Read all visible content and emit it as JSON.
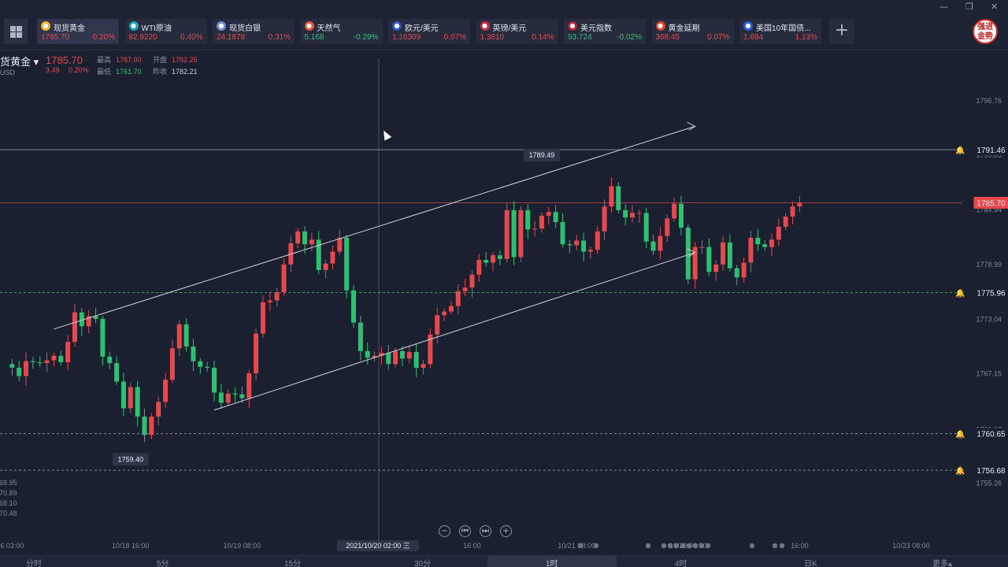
{
  "window": {
    "minimize": "—",
    "restore": "❐",
    "close": "✕"
  },
  "quotes": [
    {
      "name": "现货黄金",
      "price": "1785.70",
      "change": "0.20%",
      "dir": "up",
      "icon_color": "#e9b437",
      "icon": "gold-icon"
    },
    {
      "name": "WTI原油",
      "price": "82.9220",
      "change": "0.40%",
      "dir": "up",
      "icon_color": "#17a3b8",
      "icon": "oil-icon"
    },
    {
      "name": "现货白银",
      "price": "24.1878",
      "change": "0.31%",
      "dir": "up",
      "icon_color": "#6c8fd8",
      "icon": "silver-icon"
    },
    {
      "name": "天然气",
      "price": "5.168",
      "change": "-0.29%",
      "dir": "down",
      "icon_color": "#e6553a",
      "icon": "flame-icon"
    },
    {
      "name": "欧元/美元",
      "price": "1.16309",
      "change": "0.07%",
      "dir": "up",
      "icon_color": "#3357c9",
      "icon": "flag-eu-us-icon"
    },
    {
      "name": "英镑/美元",
      "price": "1.3810",
      "change": "0.14%",
      "dir": "up",
      "icon_color": "#c92a3e",
      "icon": "flag-uk-us-icon"
    },
    {
      "name": "美元指数",
      "price": "93.724",
      "change": "-0.02%",
      "dir": "down",
      "icon_color": "#b22234",
      "icon": "flag-us-icon"
    },
    {
      "name": "黄金延期",
      "price": "368.45",
      "change": "0.07%",
      "dir": "up",
      "icon_color": "#d9472b",
      "icon": "gold-bar-icon"
    },
    {
      "name": "美国10年国债...",
      "price": "1.694",
      "change": "1.13%",
      "dir": "up",
      "icon_color": "#2a5bd7",
      "icon": "bar-chart-icon"
    }
  ],
  "brand": {
    "line1": "强进",
    "line2": "金势"
  },
  "instrument": {
    "name": "货黄金",
    "unit": "USD",
    "price": "1785.70",
    "change": "3.49",
    "change_pct": "0.20%",
    "high_label": "最高",
    "high": "1787.00",
    "open_label": "开盘",
    "open": "1782.25",
    "low_label": "最低",
    "low": "1761.70",
    "prev_label": "昨收",
    "prev": "1782.21"
  },
  "chart_data": {
    "type": "candlestick",
    "timeframe": "1时",
    "ylim": [
      1752.5,
      1799.5
    ],
    "y_ticks": [
      "1796.76",
      "1790.85",
      "1784.94",
      "1778.99",
      "1773.04",
      "1767.15",
      "1761.07",
      "1755.26"
    ],
    "left_labels": [
      "69.95",
      "70.89",
      "68.10",
      "70.48"
    ],
    "x_ticks": [
      {
        "label": "6 03:00",
        "i": 1
      },
      {
        "label": "10/18 16:00",
        "i": 18
      },
      {
        "label": "10/19 08:00",
        "i": 34
      },
      {
        "label": "16:00",
        "i": 67
      },
      {
        "label": "10/21 08:00",
        "i": 82
      },
      {
        "label": "10/22 00:00",
        "i": 98
      },
      {
        "label": "16:00",
        "i": 114
      },
      {
        "label": "10/23 08:00",
        "i": 130
      }
    ],
    "crosshair_label": "2021/10/20 02:00 三",
    "closes": [
      1768.2,
      1767.8,
      1766.9,
      1768.5,
      1768.4,
      1768.3,
      1768.6,
      1769.1,
      1768.4,
      1770.6,
      1773.8,
      1772.3,
      1773.4,
      1773.1,
      1769.0,
      1768.3,
      1766.3,
      1763.4,
      1765.7,
      1762.5,
      1760.5,
      1762.5,
      1764.1,
      1766.5,
      1769.9,
      1772.5,
      1770.1,
      1768.5,
      1767.9,
      1767.8,
      1765.1,
      1764.0,
      1765.0,
      1764.9,
      1764.5,
      1767.2,
      1771.5,
      1774.9,
      1775.1,
      1776.0,
      1779.0,
      1781.3,
      1782.6,
      1781.2,
      1781.7,
      1778.4,
      1779.1,
      1780.4,
      1781.9,
      1776.2,
      1772.7,
      1769.6,
      1768.9,
      1769.1,
      1769.4,
      1768.2,
      1769.6,
      1768.8,
      1769.5,
      1767.8,
      1768.2,
      1771.4,
      1773.5,
      1773.9,
      1774.5,
      1776.1,
      1776.5,
      1777.9,
      1779.5,
      1779.2,
      1780.0,
      1779.6,
      1784.9,
      1779.8,
      1784.9,
      1782.8,
      1782.9,
      1784.3,
      1784.7,
      1783.6,
      1781.2,
      1781.1,
      1781.6,
      1780.4,
      1780.6,
      1782.6,
      1785.3,
      1787.5,
      1784.9,
      1784.1,
      1784.6,
      1784.6,
      1781.5,
      1780.5,
      1782.1,
      1784.0,
      1785.6,
      1783.0,
      1777.4,
      1780.9,
      1780.9,
      1778.2,
      1779.0,
      1781.4,
      1778.6,
      1777.6,
      1779.2,
      1781.9,
      1781.2,
      1780.9,
      1781.7,
      1783.1,
      1784.2,
      1785.3,
      1785.7
    ],
    "highlight_points": [
      {
        "label": "1789.49",
        "i": 77
      },
      {
        "label": "1759.40",
        "i": 18
      }
    ],
    "price_lines": [
      {
        "value": "1791.46",
        "style": "solid",
        "color": "#9aa1b0",
        "alert": true
      },
      {
        "value": "1785.70",
        "style": "solid",
        "color": "#e5484d",
        "current": true
      },
      {
        "value": "1775.96",
        "style": "dashed",
        "color": "#2fbf71",
        "alert": true
      },
      {
        "value": "1760.65",
        "style": "dashed",
        "color": "#9aa1b0",
        "alert": true
      },
      {
        "value": "1756.68",
        "style": "dashed",
        "color": "#9aa1b0",
        "alert": true
      }
    ],
    "channel": {
      "upper": [
        [
          7,
          1772.0
        ],
        [
          99,
          1794.0
        ]
      ],
      "lower": [
        [
          30,
          1763.2
        ],
        [
          99,
          1780.3
        ]
      ]
    },
    "grid": false
  },
  "chart_buttons": [
    "−",
    "⏮",
    "⏭",
    "+"
  ],
  "timeframes": [
    {
      "label": "分时"
    },
    {
      "label": "5分"
    },
    {
      "label": "15分"
    },
    {
      "label": "30分"
    },
    {
      "label": "1时",
      "active": true
    },
    {
      "label": "4时"
    },
    {
      "label": "日K"
    },
    {
      "label": "更多▴"
    }
  ]
}
